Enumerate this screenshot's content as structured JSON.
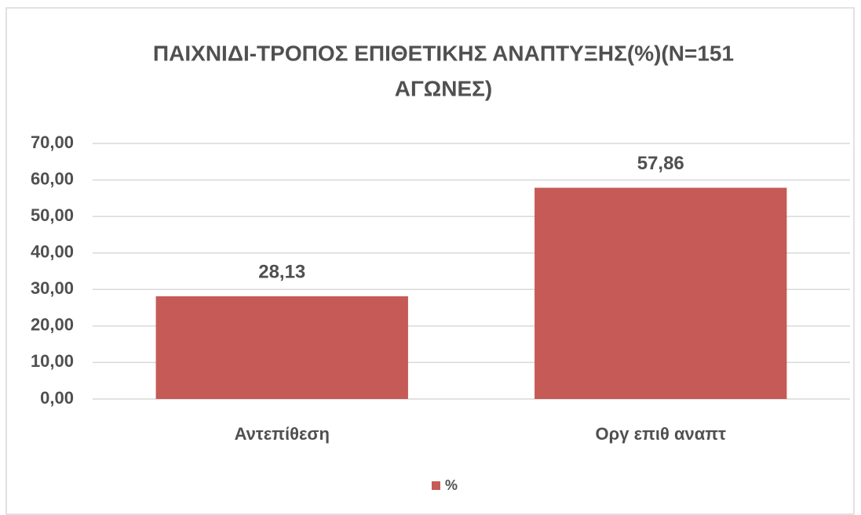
{
  "chart_data": {
    "type": "bar",
    "title": [
      "ΠΑΙΧΝΙΔΙ-ΤΡΟΠΟΣ ΕΠΙΘΕΤΙΚΗΣ ΑΝΑΠΤΥΞΗΣ(%)(Ν=151",
      "ΑΓΩΝΕΣ)"
    ],
    "categories": [
      "Αντεπίθεση",
      "Οργ επιθ αναπτ"
    ],
    "series": [
      {
        "name": "%",
        "color": "#c55a56",
        "values": [
          28.13,
          57.86
        ],
        "value_labels": [
          "28,13",
          "57,86"
        ]
      }
    ],
    "ylim": [
      0,
      70
    ],
    "yticks": [
      {
        "value": 0,
        "label": "0,00"
      },
      {
        "value": 10,
        "label": "10,00"
      },
      {
        "value": 20,
        "label": "20,00"
      },
      {
        "value": 30,
        "label": "30,00"
      },
      {
        "value": 40,
        "label": "40,00"
      },
      {
        "value": 50,
        "label": "50,00"
      },
      {
        "value": 60,
        "label": "60,00"
      },
      {
        "value": 70,
        "label": "70,00"
      }
    ],
    "grid": true,
    "legend": "bottom"
  }
}
